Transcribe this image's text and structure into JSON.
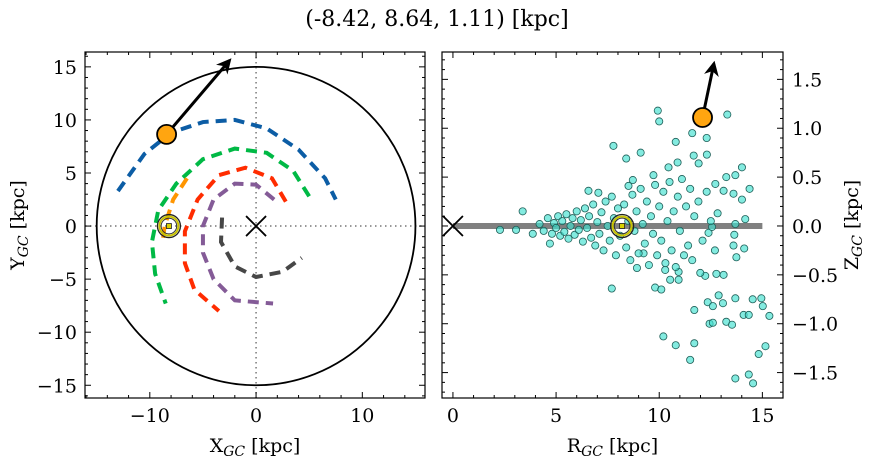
{
  "title": "(-8.42, 8.64, 1.11) [kpc]",
  "chart_data": [
    {
      "type": "line",
      "panel": "XY",
      "xlabel": {
        "main": "X",
        "sub": "GC",
        "unit": " [kpc]"
      },
      "ylabel": {
        "main": "Y",
        "sub": "GC",
        "unit": " [kpc]"
      },
      "xlim": [
        -16.1,
        15.9
      ],
      "ylim": [
        -16.2,
        16.4
      ],
      "xticks": [
        -10,
        0,
        10
      ],
      "yticks": [
        -15,
        -10,
        -5,
        0,
        5,
        10,
        15
      ],
      "xtick_labels": [
        "−10",
        "0",
        "10"
      ],
      "ytick_labels": [
        "−15",
        "−10",
        "−5",
        "0",
        "5",
        "10",
        "15"
      ],
      "boundary_circle_radius": 15,
      "crosshair": {
        "x": 0,
        "y": 0,
        "style": "dotted"
      },
      "galactic_center": {
        "x": 0,
        "y": 0,
        "marker": "x"
      },
      "sun": {
        "x": -8.2,
        "y": 0
      },
      "star": {
        "x": -8.42,
        "y": 8.64,
        "color": "#FFA510"
      },
      "velocity_arrow": {
        "from": [
          -8.42,
          8.64
        ],
        "to": [
          -2.5,
          15.6
        ]
      },
      "orbits": [
        {
          "color": "#0C5DA5",
          "points": [
            [
              -13,
              3.3
            ],
            [
              -10.5,
              6.8
            ],
            [
              -8,
              8.8
            ],
            [
              -5,
              9.8
            ],
            [
              -2,
              10
            ],
            [
              1,
              9.2
            ],
            [
              4,
              7.2
            ],
            [
              6.5,
              4.5
            ],
            [
              7.5,
              2.5
            ]
          ]
        },
        {
          "color": "#00B945",
          "points": [
            [
              5,
              2.8
            ],
            [
              3.5,
              5.2
            ],
            [
              1,
              6.9
            ],
            [
              -2,
              7.3
            ],
            [
              -5,
              6.3
            ],
            [
              -7.5,
              4
            ],
            [
              -9.2,
              1.5
            ],
            [
              -9.8,
              -1.5
            ],
            [
              -9.5,
              -4.5
            ],
            [
              -8.5,
              -7.3
            ]
          ]
        },
        {
          "color": "#FF9500",
          "points": [
            [
              -6.5,
              4.5
            ],
            [
              -7.8,
              2.5
            ],
            [
              -8.6,
              0
            ],
            [
              -8.8,
              -1.5
            ]
          ]
        },
        {
          "color": "#FF2C00",
          "points": [
            [
              2.8,
              2.3
            ],
            [
              1.5,
              4.5
            ],
            [
              -1,
              5.5
            ],
            [
              -3.5,
              4.8
            ],
            [
              -5.5,
              2.5
            ],
            [
              -6.7,
              -0.5
            ],
            [
              -6.7,
              -3.5
            ],
            [
              -5.8,
              -6
            ],
            [
              -3.5,
              -8
            ]
          ]
        },
        {
          "color": "#845B97",
          "points": [
            [
              1.7,
              2.5
            ],
            [
              0,
              3.9
            ],
            [
              -2,
              4
            ],
            [
              -4,
              2.5
            ],
            [
              -5,
              0
            ],
            [
              -5,
              -2.5
            ],
            [
              -4,
              -5
            ],
            [
              -2,
              -7
            ],
            [
              1.6,
              -7.3
            ]
          ]
        },
        {
          "color": "#474747",
          "points": [
            [
              -3.2,
              0.8
            ],
            [
              -3.3,
              -1.5
            ],
            [
              -2,
              -3.8
            ],
            [
              0,
              -4.8
            ],
            [
              2.5,
              -4.3
            ],
            [
              4.3,
              -3
            ]
          ]
        }
      ]
    },
    {
      "type": "scatter",
      "panel": "RZ",
      "xlabel": {
        "main": "R",
        "sub": "GC",
        "unit": " [kpc]"
      },
      "ylabel": {
        "main": "Z",
        "sub": "GC",
        "unit": " [kpc]"
      },
      "xlim": [
        -0.53,
        16.0
      ],
      "ylim": [
        -1.76,
        1.78
      ],
      "xticks": [
        0,
        5,
        10,
        15
      ],
      "yticks": [
        -1.5,
        -1.0,
        -0.5,
        0.0,
        0.5,
        1.0,
        1.5
      ],
      "xtick_labels": [
        "0",
        "5",
        "10",
        "15"
      ],
      "ytick_labels": [
        "−1.5",
        "−1.0",
        "−0.5",
        "0.0",
        "0.5",
        "1.0",
        "1.5"
      ],
      "yaxis_side": "right",
      "disk_line": {
        "from": 0,
        "to": 15,
        "z": 0,
        "color": "#808080"
      },
      "galactic_center": {
        "x": 0,
        "y": 0,
        "marker": "x"
      },
      "sun": {
        "x": 8.2,
        "y": 0
      },
      "star": {
        "x": 12.1,
        "y": 1.11,
        "color": "#FFA510"
      },
      "velocity_arrow": {
        "from": [
          12.1,
          1.11
        ],
        "to": [
          12.65,
          1.66
        ]
      },
      "point_color": "#40E0D0",
      "points": [
        [
          2.28,
          -0.04
        ],
        [
          3.06,
          -0.04
        ],
        [
          3.38,
          0.15
        ],
        [
          3.87,
          -0.08
        ],
        [
          4.7,
          -0.18
        ],
        [
          7.78,
          0.82
        ],
        [
          9.93,
          1.18
        ],
        [
          10.0,
          1.07
        ],
        [
          13.3,
          1.14
        ],
        [
          11.6,
          0.95
        ],
        [
          12.3,
          0.9
        ],
        [
          10.8,
          0.86
        ],
        [
          8.4,
          0.69
        ],
        [
          9.1,
          0.75
        ],
        [
          7.7,
          -0.64
        ],
        [
          9.8,
          -0.63
        ],
        [
          10.1,
          -0.65
        ],
        [
          10.2,
          -1.13
        ],
        [
          10.8,
          -1.22
        ],
        [
          11.7,
          -1.2
        ],
        [
          11.5,
          -1.37
        ],
        [
          11.7,
          -0.86
        ],
        [
          12.35,
          -0.78
        ],
        [
          12.6,
          -0.82
        ],
        [
          12.88,
          -0.71
        ],
        [
          13.09,
          -0.79
        ],
        [
          13.69,
          -0.74
        ],
        [
          14.09,
          -0.91
        ],
        [
          14.34,
          -0.91
        ],
        [
          14.53,
          -0.75
        ],
        [
          14.95,
          -0.74
        ],
        [
          15.02,
          -0.82
        ],
        [
          15.34,
          -0.92
        ],
        [
          12.44,
          -1.0
        ],
        [
          12.6,
          -0.99
        ],
        [
          13.25,
          -0.98
        ],
        [
          13.53,
          -1.01
        ],
        [
          15.15,
          -1.23
        ],
        [
          14.82,
          -1.31
        ],
        [
          13.69,
          -1.56
        ],
        [
          14.34,
          -1.52
        ],
        [
          14.55,
          -1.61
        ],
        [
          14.01,
          0.6
        ],
        [
          14.38,
          0.38
        ],
        [
          13.69,
          0.52
        ],
        [
          13.25,
          0.5
        ],
        [
          13.6,
          0.33
        ],
        [
          14.01,
          0.27
        ],
        [
          14.17,
          0.07
        ],
        [
          13.69,
          0.02
        ],
        [
          13.64,
          -0.09
        ],
        [
          13.6,
          -0.2
        ],
        [
          14.12,
          -0.23
        ],
        [
          13.74,
          -0.32
        ],
        [
          13.12,
          -0.5
        ],
        [
          12.77,
          -0.49
        ],
        [
          12.23,
          -0.51
        ],
        [
          11.99,
          -0.48
        ],
        [
          10.94,
          -0.47
        ],
        [
          10.53,
          -0.55
        ],
        [
          10.94,
          -0.55
        ],
        [
          10.29,
          -0.45
        ],
        [
          8.92,
          -0.43
        ],
        [
          9.24,
          -0.28
        ],
        [
          8.51,
          0.41
        ],
        [
          7.05,
          0.34
        ],
        [
          6.57,
          0.36
        ],
        [
          8.72,
          0.47
        ],
        [
          9.72,
          0.52
        ],
        [
          10.45,
          0.6
        ],
        [
          10.89,
          0.65
        ],
        [
          11.91,
          0.64
        ],
        [
          11.67,
          0.72
        ],
        [
          12.31,
          0.73
        ],
        [
          12.72,
          0.43
        ],
        [
          13.12,
          0.36
        ],
        [
          12.83,
          0.13
        ],
        [
          12.39,
          -0.07
        ],
        [
          12.56,
          -0.01
        ],
        [
          4.2,
          0.02
        ],
        [
          4.4,
          -0.05
        ],
        [
          4.6,
          0.08
        ],
        [
          4.8,
          -0.08
        ],
        [
          4.9,
          0.03
        ],
        [
          5.0,
          -0.02
        ],
        [
          5.1,
          0.1
        ],
        [
          5.2,
          -0.1
        ],
        [
          5.3,
          0.05
        ],
        [
          5.4,
          -0.06
        ],
        [
          5.5,
          0.12
        ],
        [
          5.6,
          -0.13
        ],
        [
          5.7,
          0.0
        ],
        [
          5.8,
          0.08
        ],
        [
          5.9,
          -0.09
        ],
        [
          6.0,
          0.15
        ],
        [
          6.1,
          -0.04
        ],
        [
          6.2,
          0.06
        ],
        [
          6.3,
          -0.16
        ],
        [
          6.4,
          0.18
        ],
        [
          6.5,
          -0.02
        ],
        [
          6.6,
          0.1
        ],
        [
          6.7,
          -0.12
        ],
        [
          6.8,
          0.22
        ],
        [
          6.9,
          -0.2
        ],
        [
          7.0,
          0.04
        ],
        [
          7.1,
          -0.08
        ],
        [
          7.2,
          0.14
        ],
        [
          7.3,
          -0.25
        ],
        [
          7.4,
          0.25
        ],
        [
          7.5,
          0.0
        ],
        [
          7.6,
          -0.15
        ],
        [
          7.7,
          0.3
        ],
        [
          7.8,
          0.08
        ],
        [
          7.9,
          -0.3
        ],
        [
          8.0,
          0.18
        ],
        [
          8.1,
          -0.1
        ],
        [
          8.3,
          0.22
        ],
        [
          8.4,
          -0.22
        ],
        [
          8.5,
          0.05
        ],
        [
          8.6,
          -0.35
        ],
        [
          8.7,
          0.32
        ],
        [
          8.8,
          -0.05
        ],
        [
          8.9,
          0.15
        ],
        [
          9.0,
          -0.28
        ],
        [
          9.1,
          0.38
        ],
        [
          9.2,
          0.02
        ],
        [
          9.3,
          -0.18
        ],
        [
          9.4,
          0.25
        ],
        [
          9.5,
          -0.4
        ],
        [
          9.6,
          0.1
        ],
        [
          9.7,
          -0.08
        ],
        [
          9.8,
          0.42
        ],
        [
          9.9,
          -0.3
        ],
        [
          10.0,
          0.2
        ],
        [
          10.1,
          -0.15
        ],
        [
          10.2,
          0.35
        ],
        [
          10.3,
          -0.38
        ],
        [
          10.4,
          0.05
        ],
        [
          10.5,
          0.45
        ],
        [
          10.6,
          -0.25
        ],
        [
          10.7,
          0.15
        ],
        [
          10.8,
          -0.42
        ],
        [
          10.9,
          0.3
        ],
        [
          11.0,
          -0.05
        ],
        [
          11.1,
          0.48
        ],
        [
          11.2,
          -0.3
        ],
        [
          11.3,
          0.2
        ],
        [
          11.4,
          -0.2
        ],
        [
          11.5,
          0.38
        ],
        [
          11.6,
          -0.35
        ],
        [
          11.7,
          0.1
        ],
        [
          11.9,
          0.25
        ],
        [
          12.1,
          -0.15
        ],
        [
          12.3,
          0.35
        ],
        [
          12.5,
          0.05
        ],
        [
          12.7,
          -0.25
        ]
      ]
    }
  ]
}
